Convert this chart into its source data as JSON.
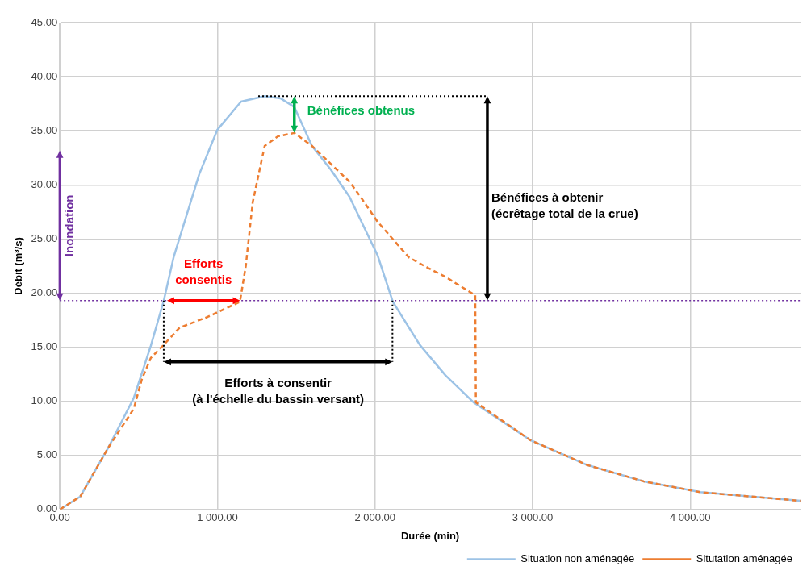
{
  "chart_data": {
    "type": "line",
    "xlabel": "Durée (min)",
    "ylabel": "Débit (m³/s)",
    "xlim": [
      0,
      4700
    ],
    "ylim": [
      0,
      45
    ],
    "xticks": [
      {
        "value": 0,
        "label": "0.00"
      },
      {
        "value": 1000,
        "label": "1 000.00"
      },
      {
        "value": 2000,
        "label": "2 000.00"
      },
      {
        "value": 3000,
        "label": "3 000.00"
      },
      {
        "value": 4000,
        "label": "4 000.00"
      }
    ],
    "yticks": [
      {
        "value": 0,
        "label": "0.00"
      },
      {
        "value": 5,
        "label": "5.00"
      },
      {
        "value": 10,
        "label": "10.00"
      },
      {
        "value": 15,
        "label": "15.00"
      },
      {
        "value": 20,
        "label": "20.00"
      },
      {
        "value": 25,
        "label": "25.00"
      },
      {
        "value": 30,
        "label": "30.00"
      },
      {
        "value": 35,
        "label": "35.00"
      },
      {
        "value": 40,
        "label": "40.00"
      },
      {
        "value": 45,
        "label": "45.00"
      }
    ],
    "grid": true,
    "legend": "bottom",
    "marker": "none",
    "series": [
      {
        "name": "Situation non aménagée",
        "color": "#9dc3e6",
        "line_style": "solid",
        "x": [
          0,
          130,
          307,
          469,
          577,
          658,
          722,
          885,
          1000,
          1150,
          1300,
          1400,
          1488,
          1600,
          1720,
          1838,
          2016,
          2113,
          2285,
          2447,
          2625,
          2987,
          3348,
          3705,
          4065,
          4700
        ],
        "values": [
          0,
          1.2,
          5.7,
          10.3,
          15.1,
          19.2,
          23.3,
          31.0,
          35.1,
          37.7,
          38.2,
          38.0,
          37.2,
          33.6,
          31.4,
          28.9,
          23.5,
          19.2,
          15.2,
          12.4,
          9.9,
          6.4,
          4.1,
          2.6,
          1.6,
          0.8
        ]
      },
      {
        "name": "Situtation aménagée",
        "color": "#ed7d31",
        "line_style": "dashed",
        "x": [
          0,
          130,
          307,
          469,
          520,
          577,
          652,
          760,
          938,
          1143,
          1180,
          1224,
          1300,
          1385,
          1488,
          1600,
          1838,
          1908,
          2016,
          2215,
          2340,
          2447,
          2636,
          2640,
          2987,
          3348,
          3705,
          4065,
          4700
        ],
        "values": [
          0,
          1.2,
          5.7,
          9.3,
          12.0,
          14.0,
          15.1,
          16.8,
          17.8,
          19.2,
          22.5,
          28.4,
          33.6,
          34.5,
          34.8,
          33.6,
          30.3,
          28.9,
          26.6,
          23.3,
          22.3,
          21.5,
          19.8,
          9.9,
          6.4,
          4.1,
          2.6,
          1.6,
          0.8
        ]
      }
    ],
    "ref_lines": [
      {
        "axis": "y",
        "value": 19.3,
        "color": "#7030a0",
        "line_style": "dotted"
      }
    ],
    "annotations": [
      "Inondation",
      "Efforts\nconsentis",
      "Efforts à consentir\n(à l'échelle du bassin versant)",
      "Bénéfices obtenus",
      "Bénéfices à obtenir\n(écrêtage total de la crue)"
    ]
  }
}
